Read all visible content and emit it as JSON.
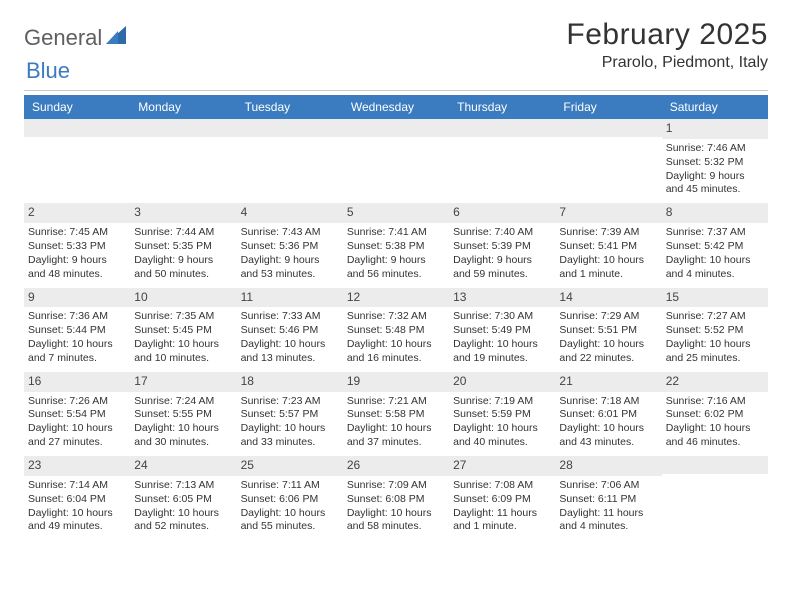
{
  "logo": {
    "text1": "General",
    "text2": "Blue"
  },
  "title": "February 2025",
  "location": "Prarolo, Piedmont, Italy",
  "colors": {
    "header_bg": "#3b7bbf",
    "header_text": "#ffffff",
    "daynum_bg": "#ececec",
    "text": "#333333",
    "logo_gray": "#5f5f5f",
    "logo_blue": "#3b7bbf",
    "divider": "#c9c9c9",
    "page_bg": "#ffffff"
  },
  "typography": {
    "title_fontsize": 30,
    "location_fontsize": 16,
    "weekday_fontsize": 12,
    "cell_fontsize": 10.5
  },
  "weekdays": [
    "Sunday",
    "Monday",
    "Tuesday",
    "Wednesday",
    "Thursday",
    "Friday",
    "Saturday"
  ],
  "weeks": [
    [
      {
        "day": "",
        "lines": []
      },
      {
        "day": "",
        "lines": []
      },
      {
        "day": "",
        "lines": []
      },
      {
        "day": "",
        "lines": []
      },
      {
        "day": "",
        "lines": []
      },
      {
        "day": "",
        "lines": []
      },
      {
        "day": "1",
        "lines": [
          "Sunrise: 7:46 AM",
          "Sunset: 5:32 PM",
          "Daylight: 9 hours and 45 minutes."
        ]
      }
    ],
    [
      {
        "day": "2",
        "lines": [
          "Sunrise: 7:45 AM",
          "Sunset: 5:33 PM",
          "Daylight: 9 hours and 48 minutes."
        ]
      },
      {
        "day": "3",
        "lines": [
          "Sunrise: 7:44 AM",
          "Sunset: 5:35 PM",
          "Daylight: 9 hours and 50 minutes."
        ]
      },
      {
        "day": "4",
        "lines": [
          "Sunrise: 7:43 AM",
          "Sunset: 5:36 PM",
          "Daylight: 9 hours and 53 minutes."
        ]
      },
      {
        "day": "5",
        "lines": [
          "Sunrise: 7:41 AM",
          "Sunset: 5:38 PM",
          "Daylight: 9 hours and 56 minutes."
        ]
      },
      {
        "day": "6",
        "lines": [
          "Sunrise: 7:40 AM",
          "Sunset: 5:39 PM",
          "Daylight: 9 hours and 59 minutes."
        ]
      },
      {
        "day": "7",
        "lines": [
          "Sunrise: 7:39 AM",
          "Sunset: 5:41 PM",
          "Daylight: 10 hours and 1 minute."
        ]
      },
      {
        "day": "8",
        "lines": [
          "Sunrise: 7:37 AM",
          "Sunset: 5:42 PM",
          "Daylight: 10 hours and 4 minutes."
        ]
      }
    ],
    [
      {
        "day": "9",
        "lines": [
          "Sunrise: 7:36 AM",
          "Sunset: 5:44 PM",
          "Daylight: 10 hours and 7 minutes."
        ]
      },
      {
        "day": "10",
        "lines": [
          "Sunrise: 7:35 AM",
          "Sunset: 5:45 PM",
          "Daylight: 10 hours and 10 minutes."
        ]
      },
      {
        "day": "11",
        "lines": [
          "Sunrise: 7:33 AM",
          "Sunset: 5:46 PM",
          "Daylight: 10 hours and 13 minutes."
        ]
      },
      {
        "day": "12",
        "lines": [
          "Sunrise: 7:32 AM",
          "Sunset: 5:48 PM",
          "Daylight: 10 hours and 16 minutes."
        ]
      },
      {
        "day": "13",
        "lines": [
          "Sunrise: 7:30 AM",
          "Sunset: 5:49 PM",
          "Daylight: 10 hours and 19 minutes."
        ]
      },
      {
        "day": "14",
        "lines": [
          "Sunrise: 7:29 AM",
          "Sunset: 5:51 PM",
          "Daylight: 10 hours and 22 minutes."
        ]
      },
      {
        "day": "15",
        "lines": [
          "Sunrise: 7:27 AM",
          "Sunset: 5:52 PM",
          "Daylight: 10 hours and 25 minutes."
        ]
      }
    ],
    [
      {
        "day": "16",
        "lines": [
          "Sunrise: 7:26 AM",
          "Sunset: 5:54 PM",
          "Daylight: 10 hours and 27 minutes."
        ]
      },
      {
        "day": "17",
        "lines": [
          "Sunrise: 7:24 AM",
          "Sunset: 5:55 PM",
          "Daylight: 10 hours and 30 minutes."
        ]
      },
      {
        "day": "18",
        "lines": [
          "Sunrise: 7:23 AM",
          "Sunset: 5:57 PM",
          "Daylight: 10 hours and 33 minutes."
        ]
      },
      {
        "day": "19",
        "lines": [
          "Sunrise: 7:21 AM",
          "Sunset: 5:58 PM",
          "Daylight: 10 hours and 37 minutes."
        ]
      },
      {
        "day": "20",
        "lines": [
          "Sunrise: 7:19 AM",
          "Sunset: 5:59 PM",
          "Daylight: 10 hours and 40 minutes."
        ]
      },
      {
        "day": "21",
        "lines": [
          "Sunrise: 7:18 AM",
          "Sunset: 6:01 PM",
          "Daylight: 10 hours and 43 minutes."
        ]
      },
      {
        "day": "22",
        "lines": [
          "Sunrise: 7:16 AM",
          "Sunset: 6:02 PM",
          "Daylight: 10 hours and 46 minutes."
        ]
      }
    ],
    [
      {
        "day": "23",
        "lines": [
          "Sunrise: 7:14 AM",
          "Sunset: 6:04 PM",
          "Daylight: 10 hours and 49 minutes."
        ]
      },
      {
        "day": "24",
        "lines": [
          "Sunrise: 7:13 AM",
          "Sunset: 6:05 PM",
          "Daylight: 10 hours and 52 minutes."
        ]
      },
      {
        "day": "25",
        "lines": [
          "Sunrise: 7:11 AM",
          "Sunset: 6:06 PM",
          "Daylight: 10 hours and 55 minutes."
        ]
      },
      {
        "day": "26",
        "lines": [
          "Sunrise: 7:09 AM",
          "Sunset: 6:08 PM",
          "Daylight: 10 hours and 58 minutes."
        ]
      },
      {
        "day": "27",
        "lines": [
          "Sunrise: 7:08 AM",
          "Sunset: 6:09 PM",
          "Daylight: 11 hours and 1 minute."
        ]
      },
      {
        "day": "28",
        "lines": [
          "Sunrise: 7:06 AM",
          "Sunset: 6:11 PM",
          "Daylight: 11 hours and 4 minutes."
        ]
      },
      {
        "day": "",
        "lines": []
      }
    ]
  ]
}
